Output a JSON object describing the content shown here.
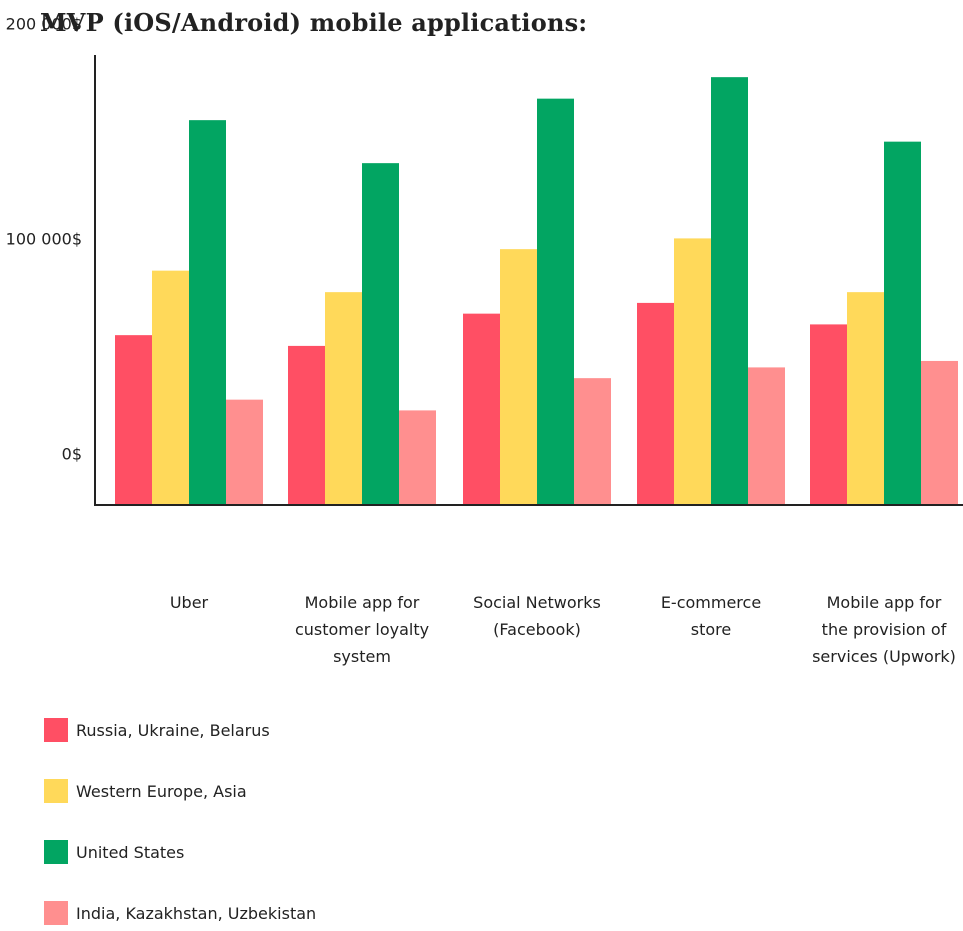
{
  "chart_data": {
    "type": "bar",
    "title": "MVP (iOS/Android) mobile applications:",
    "categories": [
      "Uber",
      "Mobile app for customer loyalty system",
      "Social Networks (Facebook)",
      "E-commerce store",
      "Mobile app for the provision of services (Upwork)"
    ],
    "category_label_lines": [
      [
        "Uber"
      ],
      [
        "Mobile app for",
        "customer loyalty",
        "system"
      ],
      [
        "Social Networks",
        "(Facebook)"
      ],
      [
        "E-commerce",
        "store"
      ],
      [
        "Mobile app for",
        "the provision of",
        "services (Upwork)"
      ]
    ],
    "series": [
      {
        "name": "Russia, Ukraine, Belarus",
        "color": "#ff4f64",
        "values": [
          55000,
          50000,
          65000,
          70000,
          60000
        ]
      },
      {
        "name": "Western Europe, Asia",
        "color": "#ffd95a",
        "values": [
          85000,
          75000,
          95000,
          100000,
          75000
        ]
      },
      {
        "name": "United States",
        "color": "#02a562",
        "values": [
          155000,
          135000,
          165000,
          175000,
          145000
        ]
      },
      {
        "name": "India, Kazakhstan, Uzbekistan",
        "color": "#ff8f8f",
        "values": [
          25000,
          20000,
          35000,
          40000,
          43000
        ]
      }
    ],
    "yticks": [
      {
        "value": 0,
        "label": "0$"
      },
      {
        "value": 100000,
        "label": "100 000$"
      },
      {
        "value": 200000,
        "label": "200 000$"
      }
    ],
    "xlabel": "",
    "ylabel": "",
    "ylim": [
      -24000,
      206000
    ],
    "grid": false,
    "legend_position": "bottom-left"
  }
}
